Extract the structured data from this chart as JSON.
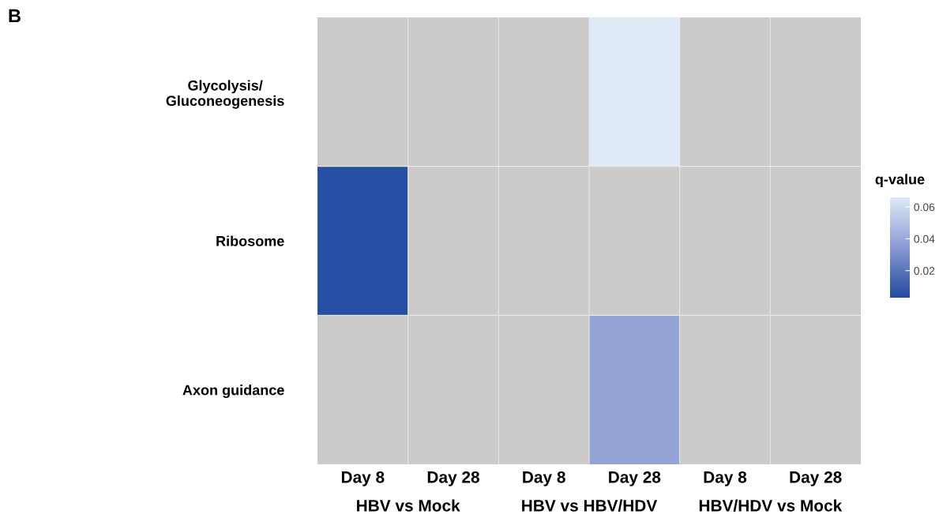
{
  "chart_data": {
    "type": "heatmap",
    "title": "B",
    "categories": [
      "Day 8",
      "Day 28",
      "Day 8",
      "Day 28",
      "Day 8",
      "Day 28"
    ],
    "y_categories": [
      "Glycolysis/\nGluconeogenesis",
      "Ribosome",
      "Axon guidance"
    ],
    "cells": [
      [
        null,
        null,
        null,
        0.066,
        null,
        null
      ],
      [
        0.004,
        null,
        null,
        null,
        null,
        null
      ],
      [
        null,
        null,
        null,
        0.038,
        null,
        null
      ]
    ],
    "annotations": [
      "HBV vs Mock",
      "HBV vs HBV/HDV",
      "HBV/HDV vs Mock"
    ],
    "clabel": "q-value",
    "clim": [
      0.003,
      0.066
    ],
    "cticks": [
      0.02,
      0.04,
      0.06
    ],
    "grid": true
  }
}
